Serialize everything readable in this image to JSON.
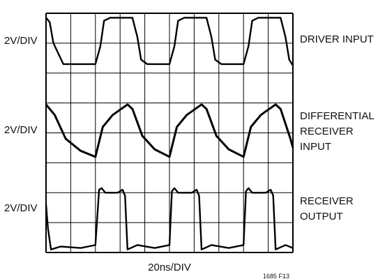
{
  "chart_data": {
    "type": "line",
    "title": "",
    "grid": true,
    "grid_divisions": {
      "x": 10,
      "y": 8
    },
    "xlabel": "20ns/DIV",
    "figure_id": "1685 F13",
    "x_range_div": [
      0,
      10
    ],
    "y_range_div": [
      0,
      8
    ],
    "series": [
      {
        "name": "DRIVER INPUT",
        "scale": "2V/DIV",
        "x": [
          0.0,
          0.15,
          0.3,
          0.7,
          2.0,
          2.2,
          2.35,
          2.6,
          3.5,
          3.7,
          3.85,
          4.1,
          5.0,
          5.2,
          5.35,
          5.6,
          6.5,
          6.7,
          6.85,
          7.1,
          8.0,
          8.2,
          8.35,
          8.6,
          9.5,
          9.7,
          9.85,
          10.0
        ],
        "y": [
          7.85,
          7.7,
          7.0,
          6.3,
          6.3,
          6.9,
          7.75,
          7.85,
          7.85,
          7.2,
          6.45,
          6.3,
          6.3,
          6.9,
          7.75,
          7.85,
          7.85,
          7.2,
          6.45,
          6.3,
          6.3,
          6.9,
          7.75,
          7.85,
          7.85,
          7.2,
          6.45,
          6.25
        ]
      },
      {
        "name": "DIFFERENTIAL RECEIVER INPUT",
        "scale": "2V/DIV",
        "x": [
          0.0,
          0.35,
          0.8,
          1.4,
          2.0,
          2.3,
          2.7,
          3.3,
          3.5,
          3.9,
          4.4,
          5.0,
          5.3,
          5.7,
          6.3,
          6.5,
          6.9,
          7.4,
          8.0,
          8.3,
          8.7,
          9.3,
          9.5,
          9.9,
          10.0
        ],
        "y": [
          4.95,
          4.6,
          3.8,
          3.4,
          3.2,
          4.2,
          4.6,
          4.95,
          4.8,
          3.9,
          3.45,
          3.2,
          4.2,
          4.6,
          4.95,
          4.8,
          3.9,
          3.45,
          3.2,
          4.2,
          4.6,
          4.95,
          4.8,
          3.8,
          3.5
        ]
      },
      {
        "name": "RECEIVER OUTPUT",
        "scale": "2V/DIV",
        "x": [
          0.0,
          0.08,
          0.2,
          0.6,
          1.4,
          2.0,
          2.15,
          2.25,
          2.4,
          2.9,
          3.1,
          3.2,
          3.3,
          3.7,
          4.4,
          5.0,
          5.1,
          5.2,
          5.35,
          5.9,
          6.1,
          6.2,
          6.3,
          6.7,
          7.4,
          8.0,
          8.1,
          8.2,
          8.35,
          8.9,
          9.1,
          9.2,
          9.3,
          9.7,
          10.0
        ],
        "y": [
          1.6,
          0.8,
          0.1,
          0.2,
          0.15,
          0.25,
          2.1,
          2.15,
          2.0,
          2.0,
          2.1,
          1.9,
          0.1,
          0.25,
          0.15,
          0.25,
          2.05,
          2.15,
          2.0,
          2.0,
          2.1,
          1.9,
          0.1,
          0.25,
          0.15,
          0.25,
          2.05,
          2.15,
          2.0,
          2.0,
          2.1,
          1.9,
          0.1,
          0.25,
          0.15
        ]
      }
    ],
    "left_labels": [
      "2V/DIV",
      "2V/DIV",
      "2V/DIV"
    ],
    "right_labels": [
      [
        "DRIVER INPUT"
      ],
      [
        "DIFFERENTIAL",
        "RECEIVER",
        "INPUT"
      ],
      [
        "RECEIVER",
        "OUTPUT"
      ]
    ]
  }
}
